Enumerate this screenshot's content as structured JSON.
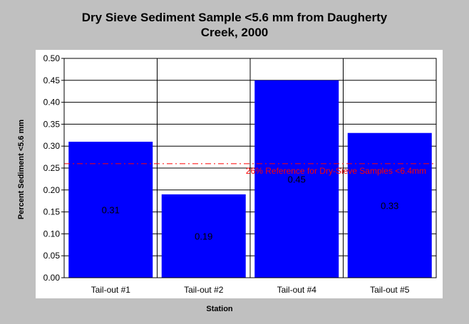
{
  "chart_data": {
    "type": "bar",
    "title_lines": [
      "Dry Sieve Sediment Sample <5.6 mm from Daugherty",
      "Creek, 2000"
    ],
    "xlabel": "Station",
    "ylabel": "Percent Sediment <5.6 mm",
    "categories": [
      "Tail-out #1",
      "Tail-out #2",
      "Tail-out #4",
      "Tail-out #5"
    ],
    "values": [
      0.31,
      0.19,
      0.45,
      0.33
    ],
    "value_labels": [
      "0.31",
      "0.19",
      "0.45",
      "0.33"
    ],
    "ylim": [
      0,
      0.5
    ],
    "yticks": [
      "0.00",
      "0.05",
      "0.10",
      "0.15",
      "0.20",
      "0.25",
      "0.30",
      "0.35",
      "0.40",
      "0.45",
      "0.50"
    ],
    "grid": true,
    "reference_line": {
      "value": 0.26,
      "label": "26% Reference for Dry-Sieve Samples <6.4mm",
      "color": "#ff0000"
    },
    "bar_color": "#0000ff",
    "background_color": "#c0c0c0"
  }
}
